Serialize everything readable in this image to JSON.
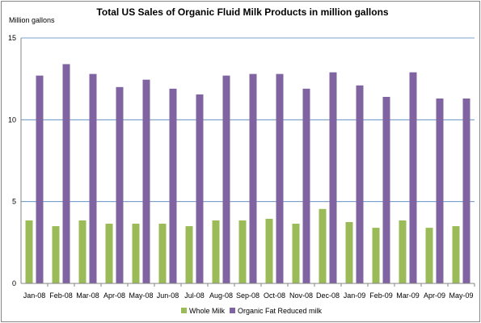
{
  "chart_data": {
    "type": "bar",
    "title": "Total US Sales of Organic Fluid Milk Products in million gallons",
    "ylabel": "Million gallons",
    "xlabel": "",
    "ylim": [
      0,
      15
    ],
    "yticks": [
      0,
      5,
      10,
      15
    ],
    "grid": true,
    "legend_position": "bottom",
    "categories": [
      "Jan-08",
      "Feb-08",
      "Mar-08",
      "Apr-08",
      "May-08",
      "Jun-08",
      "Jul-08",
      "Aug-08",
      "Sep-08",
      "Oct-08",
      "Nov-08",
      "Dec-08",
      "Jan-09",
      "Feb-09",
      "Mar-09",
      "Apr-09",
      "May-09"
    ],
    "series": [
      {
        "name": "Whole Milk",
        "color": "#9bbb59",
        "values": [
          3.85,
          3.5,
          3.85,
          3.65,
          3.65,
          3.65,
          3.5,
          3.85,
          3.85,
          3.95,
          3.65,
          4.55,
          3.75,
          3.4,
          3.85,
          3.4,
          3.5
        ]
      },
      {
        "name": "Organic Fat Reduced milk",
        "color": "#8064a2",
        "values": [
          12.7,
          13.4,
          12.8,
          12.0,
          12.45,
          11.9,
          11.55,
          12.7,
          12.8,
          12.8,
          11.9,
          12.9,
          12.1,
          11.4,
          12.9,
          11.3,
          11.3
        ]
      }
    ]
  }
}
